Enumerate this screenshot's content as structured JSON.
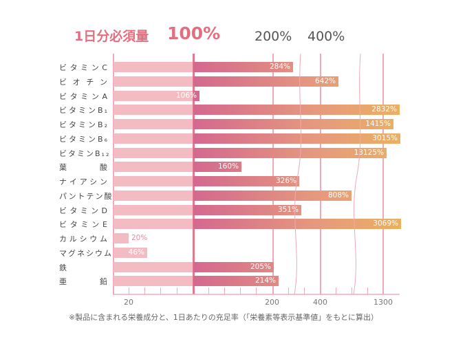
{
  "chart_data": {
    "type": "bar",
    "orientation": "horizontal",
    "header": {
      "title": "1日分必須量",
      "reference": "100%",
      "mark_200": "200%",
      "mark_400": "400%"
    },
    "categories": [
      "ビタミンC",
      "ビオチン",
      "ビタミンA",
      "ビタミンB1",
      "ビタミンB2",
      "ビタミンB6",
      "ビタミンB12",
      "葉酸",
      "ナイアシン",
      "パントテン酸",
      "ビタミンD",
      "ビタミンE",
      "カルシウム",
      "マグネシウム",
      "鉄",
      "亜鉛"
    ],
    "category_labels": [
      "ビタミンC",
      "ビ オ チ ン",
      "ビタミンA",
      "ビタミンB₁",
      "ビタミンB₂",
      "ビタミンB₆",
      "ビタミンB₁₂",
      "葉　酸",
      "ナイアシン",
      "パントテン酸",
      "ビタミンD",
      "ビタミンE",
      "カルシウム",
      "マグネシウム",
      "鉄",
      "亜　鉛"
    ],
    "values": [
      284,
      642,
      106,
      2832,
      1415,
      3015,
      13125,
      160,
      326,
      808,
      351,
      3069,
      20,
      46,
      205,
      214
    ],
    "value_labels": [
      "284%",
      "642%",
      "106%",
      "2832%",
      "1415%",
      "3015%",
      "13125%",
      "160%",
      "326%",
      "808%",
      "351%",
      "3069%",
      "20%",
      "46%",
      "205%",
      "214%"
    ],
    "x_tick_labels": [
      "20",
      "200",
      "400",
      "1300"
    ],
    "scale": "broken",
    "colors": {
      "below_100": "#f3bcc3",
      "above_100_start": "#d4688f",
      "above_100_end": "#ebb060",
      "accent": "#e07080"
    }
  },
  "footnote": "※製品に含まれる栄養成分と、1日あたりの充足率（「栄養素等表示基準値」をもとに算出）"
}
